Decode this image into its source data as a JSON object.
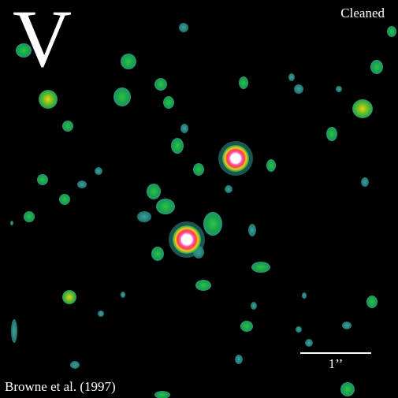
{
  "image": {
    "filter_letter": "V",
    "status": "Cleaned",
    "credit": "Browne et al. (1997)",
    "scale_label": "1’’"
  },
  "colors": {
    "background": "#000000",
    "text": "#ffffff",
    "faint": "#2b8f84",
    "mid": "#18b34a",
    "bright": "#e6d020",
    "peak": "#ff4fa8",
    "core": "#ffffff"
  }
}
